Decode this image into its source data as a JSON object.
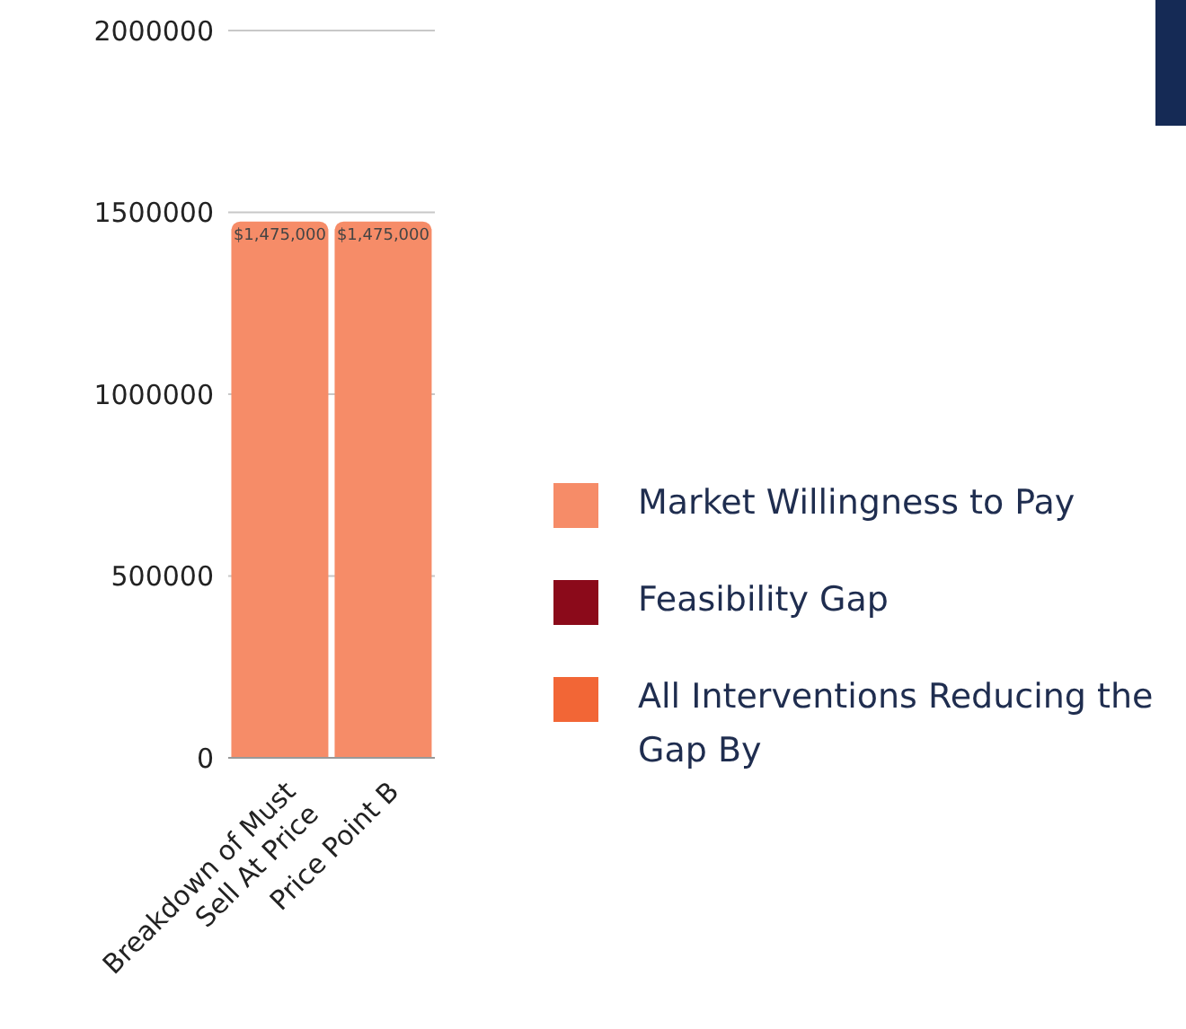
{
  "chart_data": {
    "type": "bar",
    "stacked": true,
    "categories": [
      "Breakdown of Must Sell At Price",
      "Price Point B"
    ],
    "series": [
      {
        "name": "Market Willingness to Pay",
        "color": "#f68c68",
        "values": [
          1475000,
          1475000
        ],
        "value_labels": [
          "$1,475,000",
          "$1,475,000"
        ]
      },
      {
        "name": "Feasibility Gap",
        "color": "#8b0a1a",
        "values": [
          0,
          0
        ]
      },
      {
        "name": "All Interventions Reducing the Gap By",
        "color": "#f26636",
        "values": [
          0,
          0
        ]
      }
    ],
    "ylim": [
      0,
      2000000
    ],
    "yticks": [
      0,
      500000,
      1000000,
      1500000,
      2000000
    ],
    "grid": "y",
    "legend": "right"
  }
}
